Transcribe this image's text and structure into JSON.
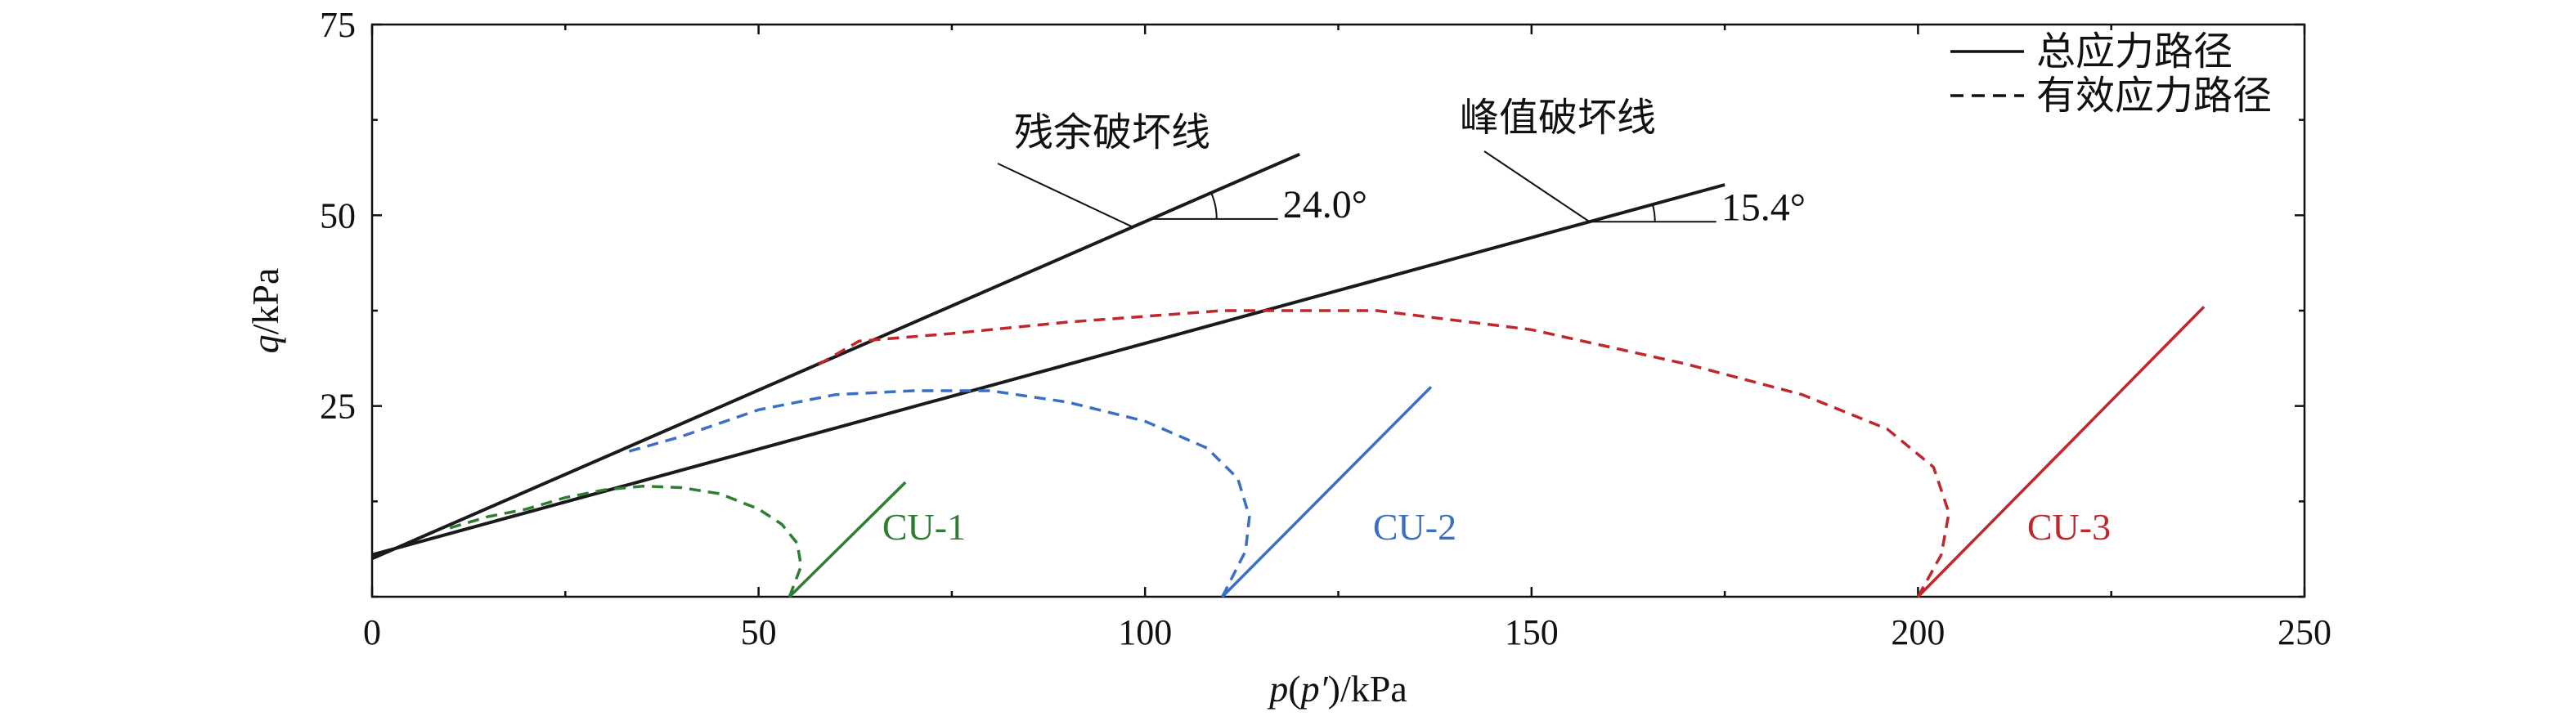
{
  "chart_data": {
    "type": "line",
    "xlabel": "p(p′)/kPa",
    "ylabel": "q/kPa",
    "xlim": [
      0,
      250
    ],
    "ylim": [
      0,
      75
    ],
    "xticks": [
      0,
      50,
      100,
      150,
      200,
      250
    ],
    "yticks": [
      25,
      50,
      75
    ],
    "grid": false,
    "legend": {
      "position": "top-right",
      "entries": [
        {
          "label": "总应力路径",
          "style": "solid"
        },
        {
          "label": "有效应力路径",
          "style": "dashed"
        }
      ]
    },
    "failure_lines": [
      {
        "label": "残余破坏线",
        "angle_label": "24.0°",
        "points": [
          [
            0,
            5
          ],
          [
            120,
            58
          ]
        ],
        "color": "#1a1a1a"
      },
      {
        "label": "峰值破坏线",
        "angle_label": "15.4°",
        "points": [
          [
            0,
            5.5
          ],
          [
            175,
            54
          ]
        ],
        "color": "#1a1a1a"
      }
    ],
    "series": [
      {
        "name": "CU-1",
        "color": "#2e7d32",
        "total_path": [
          [
            54,
            0
          ],
          [
            69,
            15
          ]
        ],
        "effective_path": [
          [
            54,
            0
          ],
          [
            55.5,
            4
          ],
          [
            55,
            7
          ],
          [
            53,
            9.5
          ],
          [
            50,
            11.5
          ],
          [
            45,
            13.5
          ],
          [
            40,
            14.3
          ],
          [
            35,
            14.5
          ],
          [
            30,
            14
          ],
          [
            25,
            13
          ],
          [
            20,
            11.5
          ],
          [
            15,
            10.5
          ],
          [
            10,
            9
          ]
        ]
      },
      {
        "name": "CU-2",
        "color": "#3a6fc4",
        "total_path": [
          [
            110,
            0
          ],
          [
            137,
            27.5
          ]
        ],
        "effective_path": [
          [
            110,
            0
          ],
          [
            113,
            6
          ],
          [
            113.5,
            10.5
          ],
          [
            112,
            15.5
          ],
          [
            108,
            19.5
          ],
          [
            100,
            23
          ],
          [
            90,
            25.5
          ],
          [
            80,
            27
          ],
          [
            70,
            27
          ],
          [
            60,
            26.5
          ],
          [
            50,
            24.5
          ],
          [
            40,
            21
          ],
          [
            33,
            19
          ]
        ]
      },
      {
        "name": "CU-3",
        "color": "#c0272d",
        "total_path": [
          [
            200,
            0
          ],
          [
            237,
            38
          ]
        ],
        "effective_path": [
          [
            200,
            0
          ],
          [
            203,
            5.5
          ],
          [
            204,
            11
          ],
          [
            202,
            17
          ],
          [
            196,
            22
          ],
          [
            185,
            26.5
          ],
          [
            170,
            30.5
          ],
          [
            150,
            35
          ],
          [
            130,
            37.5
          ],
          [
            110,
            37.5
          ],
          [
            90,
            36
          ],
          [
            75,
            34.5
          ],
          [
            63,
            33.5
          ],
          [
            57,
            30
          ]
        ]
      }
    ]
  }
}
